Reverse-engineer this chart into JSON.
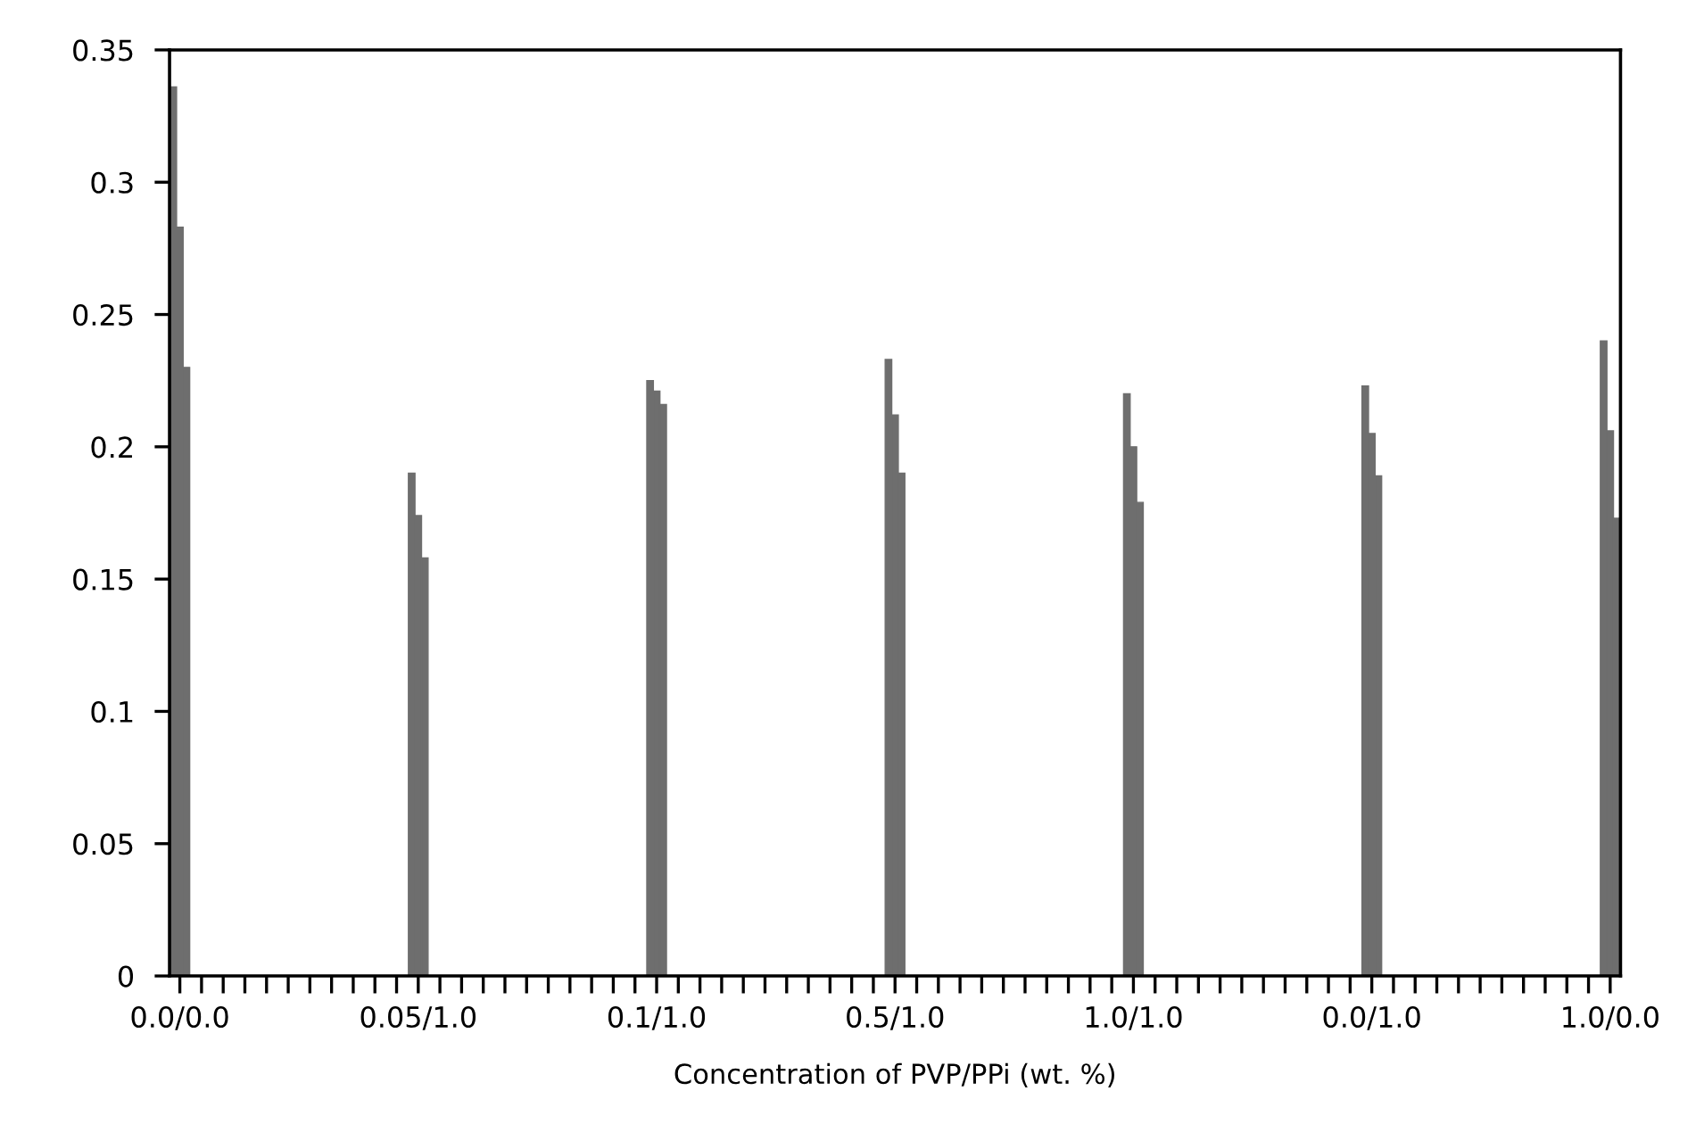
{
  "chart_data": {
    "type": "bar",
    "xlabel": "Concentration of PVP/PPi (wt. %)",
    "categories": [
      "0.0/0.0",
      "0.05/1.0",
      "0.1/1.0",
      "0.5/1.0",
      "1.0/1.0",
      "0.0/1.0",
      "1.0/0.0"
    ],
    "series": [
      {
        "color": "#6e6e6e",
        "values": [
          0.336,
          0.19,
          0.225,
          0.233,
          0.22,
          0.223,
          0.24
        ]
      },
      {
        "color": "#6e6e6e",
        "values": [
          0.283,
          0.174,
          0.221,
          0.212,
          0.2,
          0.205,
          0.206
        ]
      },
      {
        "color": "#6e6e6e",
        "values": [
          0.23,
          0.158,
          0.216,
          0.19,
          0.179,
          0.189,
          0.173
        ]
      }
    ],
    "ylim": [
      0,
      0.35
    ],
    "yticks": [
      0,
      0.05,
      0.1,
      0.15,
      0.2,
      0.25,
      0.3,
      0.35
    ]
  }
}
